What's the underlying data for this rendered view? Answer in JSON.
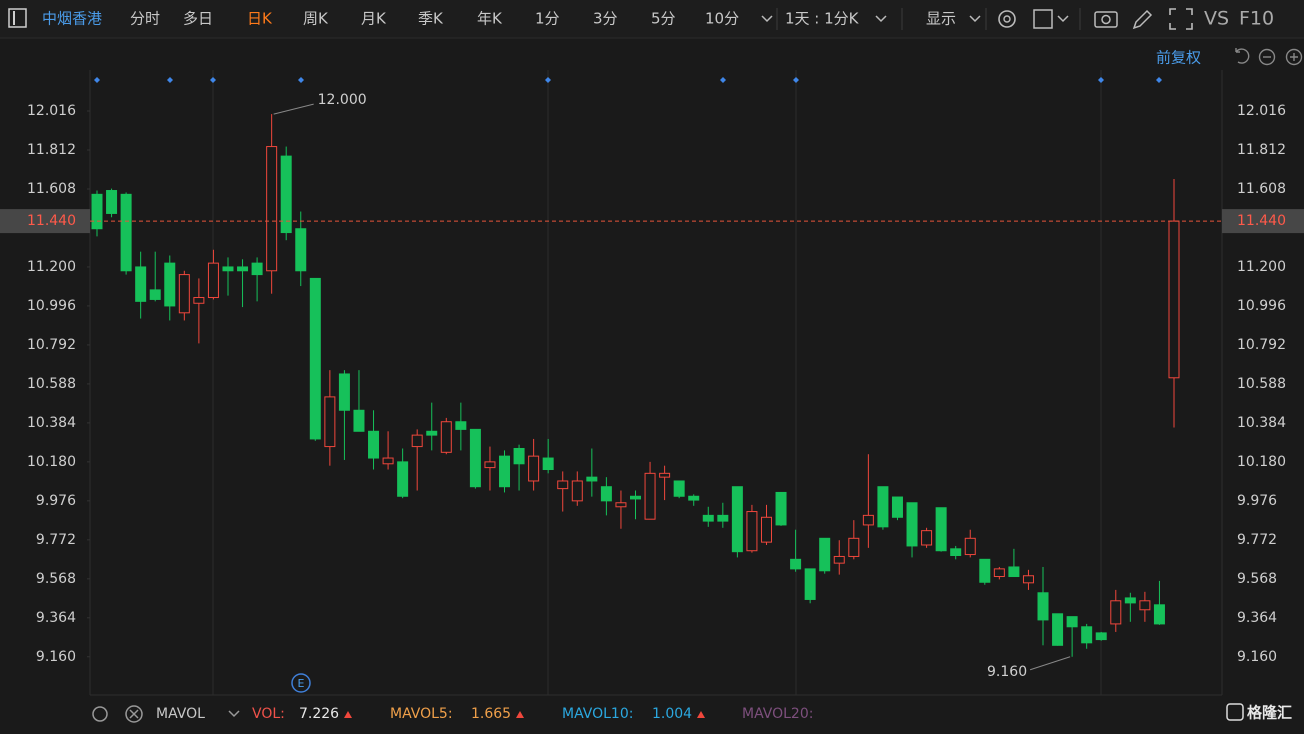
{
  "toolbar": {
    "stock": "中烟香港",
    "tabs": [
      "分时",
      "多日",
      "日K",
      "周K",
      "月K",
      "季K",
      "年K",
      "1分",
      "3分",
      "5分",
      "10分"
    ],
    "active_tab": 2,
    "period": "1天 : 1分K",
    "display": "显示",
    "vs": "VS",
    "f10": "F10",
    "adjust": "前复权"
  },
  "chart_data": {
    "type": "candlestick",
    "up_color": "#f0473c",
    "down_color": "#16c15a",
    "open": [
      11.58,
      11.6,
      11.58,
      11.2,
      11.08,
      11.22,
      10.96,
      11.01,
      11.04,
      11.2,
      11.2,
      11.22,
      11.18,
      11.78,
      11.4,
      11.14,
      10.26,
      10.64,
      10.45,
      10.34,
      10.17,
      10.18,
      10.26,
      10.34,
      10.23,
      10.39,
      10.35,
      10.15,
      10.21,
      10.25,
      10.08,
      10.2,
      10.04,
      9.976,
      10.1,
      10.05,
      9.945,
      10.0,
      9.88,
      10.1,
      10.08,
      10.0,
      9.9,
      9.9,
      10.05,
      9.715,
      9.76,
      10.02,
      9.67,
      9.62,
      9.78,
      9.65,
      9.685,
      9.85,
      10.05,
      9.996,
      9.966,
      9.745,
      9.94,
      9.725,
      9.695,
      9.67,
      9.58,
      9.63,
      9.547,
      9.495,
      9.385,
      9.37,
      9.317,
      9.285,
      9.332,
      9.468,
      9.406,
      9.432,
      10.62
    ],
    "high": [
      11.6,
      11.61,
      11.59,
      11.28,
      11.28,
      11.26,
      11.18,
      11.14,
      11.29,
      11.25,
      11.24,
      11.25,
      12.0,
      11.83,
      11.49,
      11.14,
      10.66,
      10.66,
      10.66,
      10.45,
      10.34,
      10.25,
      10.35,
      10.49,
      10.41,
      10.49,
      10.35,
      10.26,
      10.24,
      10.27,
      10.3,
      10.3,
      10.13,
      10.13,
      10.25,
      10.1,
      10.03,
      10.03,
      10.18,
      10.16,
      10.08,
      10.01,
      9.945,
      9.966,
      10.05,
      9.955,
      9.955,
      10.02,
      9.825,
      9.62,
      9.78,
      9.77,
      9.875,
      10.22,
      10.05,
      9.996,
      9.966,
      9.835,
      9.94,
      9.74,
      9.825,
      9.67,
      9.63,
      9.725,
      9.615,
      9.63,
      9.385,
      9.37,
      9.332,
      9.29,
      9.51,
      9.495,
      9.5,
      9.557,
      11.66
    ],
    "low": [
      11.36,
      11.46,
      11.16,
      10.93,
      11.02,
      10.92,
      10.92,
      10.8,
      11.03,
      11.05,
      10.99,
      11.02,
      11.06,
      11.34,
      11.1,
      10.29,
      10.16,
      10.19,
      10.34,
      10.14,
      10.14,
      9.99,
      10.03,
      10.24,
      10.22,
      10.24,
      10.04,
      10.03,
      10.02,
      10.03,
      10.03,
      10.12,
      9.92,
      9.95,
      9.998,
      9.9,
      9.83,
      9.88,
      9.88,
      9.98,
      9.99,
      9.95,
      9.84,
      9.835,
      9.68,
      9.705,
      9.745,
      9.845,
      9.605,
      9.44,
      9.595,
      9.59,
      9.67,
      9.73,
      9.825,
      9.875,
      9.68,
      9.73,
      9.71,
      9.67,
      9.68,
      9.537,
      9.565,
      9.58,
      9.51,
      9.22,
      9.218,
      9.16,
      9.202,
      9.244,
      9.29,
      9.343,
      9.343,
      9.327,
      10.36
    ],
    "close": [
      11.4,
      11.48,
      11.18,
      11.02,
      11.03,
      10.996,
      11.16,
      11.04,
      11.22,
      11.18,
      11.18,
      11.16,
      11.83,
      11.38,
      11.18,
      10.3,
      10.52,
      10.45,
      10.34,
      10.2,
      10.2,
      10.0,
      10.32,
      10.32,
      10.39,
      10.35,
      10.05,
      10.18,
      10.05,
      10.17,
      10.21,
      10.14,
      10.08,
      10.08,
      10.08,
      9.976,
      9.966,
      9.986,
      10.12,
      10.12,
      10.0,
      9.98,
      9.87,
      9.87,
      9.71,
      9.92,
      9.89,
      9.85,
      9.62,
      9.46,
      9.61,
      9.685,
      9.78,
      9.9,
      9.84,
      9.89,
      9.74,
      9.82,
      9.715,
      9.69,
      9.78,
      9.55,
      9.62,
      9.58,
      9.584,
      9.353,
      9.22,
      9.317,
      9.233,
      9.25,
      9.453,
      9.442,
      9.453,
      9.332,
      11.44
    ],
    "ylim": [
      8.96,
      12.126
    ],
    "yticks": [
      12.016,
      11.812,
      11.608,
      {
        "value": 11.2,
        "label": "11.200"
      },
      10.996,
      10.792,
      10.588,
      10.384,
      {
        "value": 10.18,
        "label": "10.180"
      },
      9.976,
      9.772,
      9.568,
      9.364,
      {
        "value": 9.16,
        "label": "9.160"
      }
    ],
    "last_price": {
      "value": 11.44,
      "label": "11.440"
    },
    "max_label": {
      "value": 12.0,
      "label": "12.000"
    },
    "min_label": {
      "value": 9.16,
      "label": "9.160"
    }
  },
  "indicator_bar": {
    "name": "MAVOL",
    "vol_label": "VOL:",
    "vol": 7.226,
    "mavol5_label": "MAVOL5:",
    "mavol5": 1.665,
    "mavol10_label": "MAVOL10:",
    "mavol10": 1.004,
    "mavol20_label": "MAVOL20:",
    "event": "E",
    "brand": "格隆汇"
  }
}
